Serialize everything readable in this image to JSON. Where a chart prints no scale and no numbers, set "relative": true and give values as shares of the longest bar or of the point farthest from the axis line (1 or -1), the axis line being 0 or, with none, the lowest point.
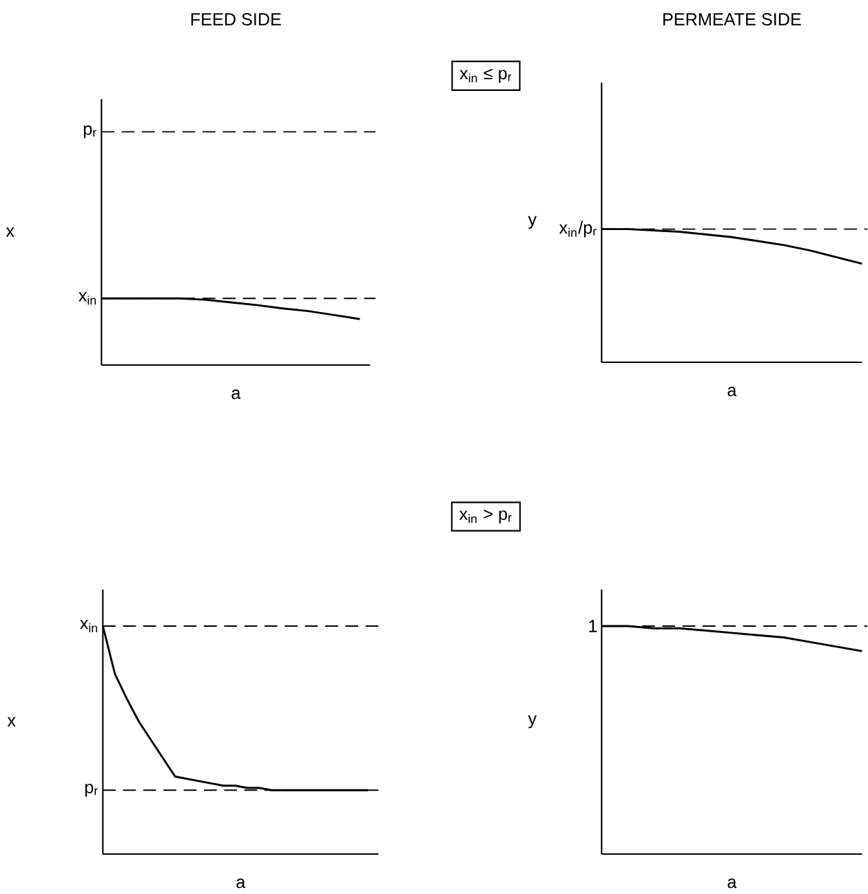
{
  "chart_data": [
    {
      "type": "line",
      "title": "FEED SIDE",
      "xlabel": "a",
      "ylabel": "x",
      "relative": true,
      "annotations": [
        "x$_{in}$ ≤ p$_{r}$"
      ],
      "categories": [
        null,
        null,
        null,
        null,
        null,
        null,
        null,
        null,
        null,
        null,
        null
      ],
      "series": [
        {
          "color": "#000000",
          "values": [
            1,
            1,
            1,
            1,
            0.98,
            0.94,
            0.9,
            0.85,
            0.81,
            0.75,
            0.69
          ]
        }
      ],
      "ref_lines": [
        {
          "axis": "y",
          "value": 3.5,
          "label": "p$_{r}$",
          "line_style": "dashed",
          "color": "#000000"
        },
        {
          "axis": "y",
          "value": 1,
          "label": "x$_{in}$",
          "line_style": "dashed",
          "color": "#000000"
        }
      ]
    },
    {
      "type": "line",
      "title": "PERMEATE SIDE",
      "xlabel": "a",
      "ylabel": "y",
      "relative": true,
      "categories": [
        null,
        null,
        null,
        null,
        null,
        null,
        null,
        null,
        null,
        null,
        null
      ],
      "series": [
        {
          "color": "#000000",
          "values": [
            1,
            1,
            0.99,
            0.98,
            0.96,
            0.94,
            0.91,
            0.88,
            0.84,
            0.79,
            0.74
          ]
        }
      ],
      "ref_lines": [
        {
          "axis": "y",
          "value": 1,
          "label": "x$_{in}$/p$_{r}$",
          "line_style": "dashed",
          "color": "#000000"
        }
      ]
    },
    {
      "type": "line",
      "xlabel": "a",
      "ylabel": "x",
      "relative": true,
      "annotations": [
        "x$_{in}$ > p$_{r}$"
      ],
      "categories": [
        null,
        null,
        null,
        null,
        null,
        null,
        null,
        null,
        null,
        null,
        null,
        null,
        null,
        null,
        null,
        null,
        null,
        null,
        null,
        null,
        null,
        null,
        null
      ],
      "series": [
        {
          "color": "#000000",
          "values": [
            1,
            0.79,
            0.68,
            0.58,
            0.5,
            0.42,
            0.34,
            0.33,
            0.32,
            0.31,
            0.3,
            0.3,
            0.29,
            0.29,
            0.28,
            0.28,
            0.28,
            0.28,
            0.28,
            0.28,
            0.28,
            0.28,
            0.28
          ]
        }
      ],
      "ref_lines": [
        {
          "axis": "y",
          "value": 1,
          "label": "x$_{in}$",
          "line_style": "dashed",
          "color": "#000000"
        },
        {
          "axis": "y",
          "value": 0.28,
          "label": "p$_{r}$",
          "line_style": "dashed",
          "color": "#000000"
        }
      ]
    },
    {
      "type": "line",
      "xlabel": "a",
      "ylabel": "y",
      "relative": true,
      "categories": [
        null,
        null,
        null,
        null,
        null,
        null,
        null,
        null,
        null,
        null,
        null
      ],
      "series": [
        {
          "color": "#000000",
          "values": [
            1,
            1,
            0.99,
            0.99,
            0.98,
            0.97,
            0.96,
            0.95,
            0.93,
            0.91,
            0.89
          ]
        }
      ],
      "ref_lines": [
        {
          "axis": "y",
          "value": 1,
          "label": "1",
          "line_style": "dashed",
          "color": "#000000"
        }
      ]
    }
  ]
}
